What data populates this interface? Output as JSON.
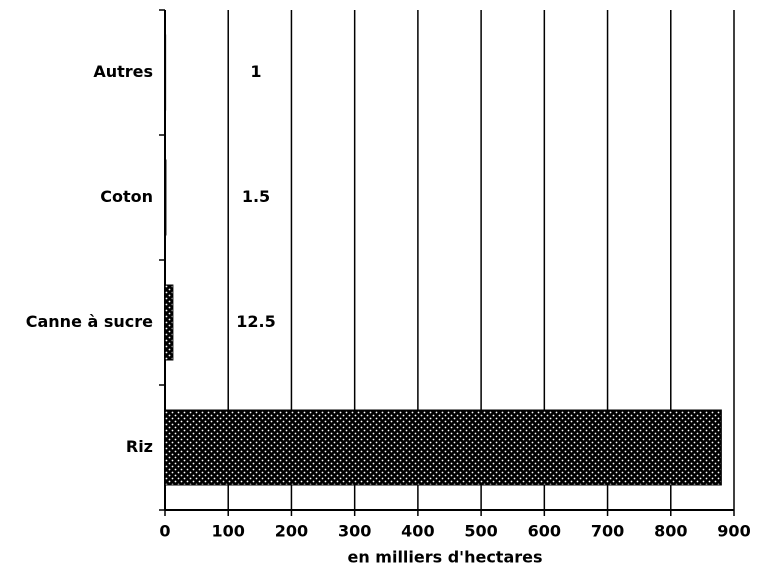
{
  "chart_data": {
    "type": "bar",
    "orientation": "horizontal",
    "categories": [
      "Autres",
      "Coton",
      "Canne à sucre",
      "Riz"
    ],
    "values": [
      1,
      1.5,
      12.5,
      880
    ],
    "value_labels": [
      "1",
      "1.5",
      "12.5",
      null
    ],
    "color": "#000000",
    "xlabel": "en milliers d'hectares",
    "xlim": [
      0,
      900
    ],
    "xticks": [
      0,
      100,
      200,
      300,
      400,
      500,
      600,
      700,
      800,
      900
    ],
    "grid": true
  }
}
